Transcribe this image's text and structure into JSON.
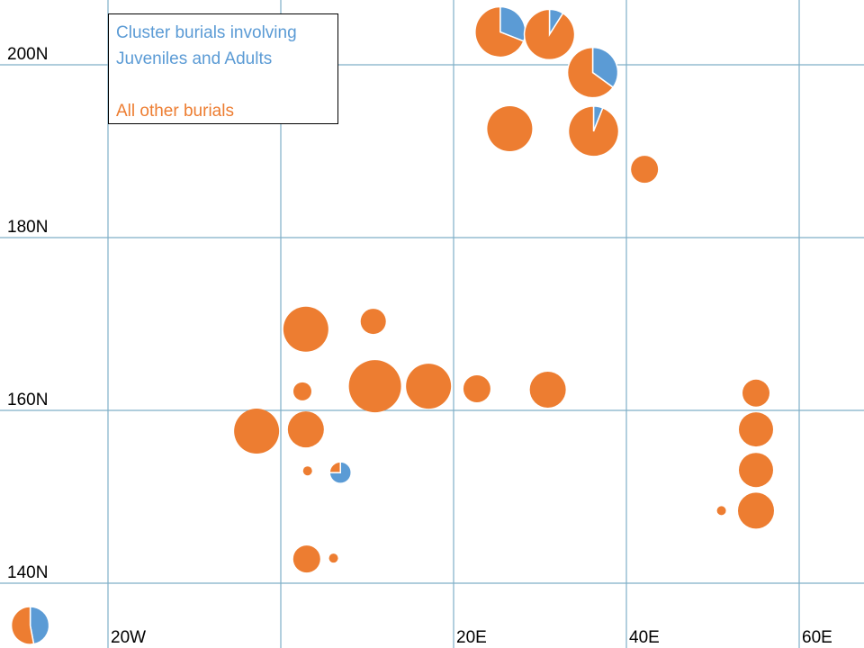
{
  "chart_data": {
    "type": "scatter",
    "subtype": "pie-bubble-map",
    "title": "",
    "xlabel": "",
    "ylabel": "",
    "x_ticks": [
      {
        "value": -20,
        "label": "20W"
      },
      {
        "value": 0,
        "label": ""
      },
      {
        "value": 20,
        "label": "20E"
      },
      {
        "value": 40,
        "label": "40E"
      },
      {
        "value": 60,
        "label": "60E"
      }
    ],
    "y_ticks": [
      {
        "value": 200,
        "label": "200N"
      },
      {
        "value": 180,
        "label": "180N"
      },
      {
        "value": 160,
        "label": "160N"
      },
      {
        "value": 140,
        "label": "140N"
      }
    ],
    "xlim": [
      -32.5,
      67.5
    ],
    "ylim": [
      132.5,
      207.5
    ],
    "grid": true,
    "legend": {
      "placement": "top-left",
      "entries": [
        {
          "label": "Cluster burials involving Juveniles and Adults",
          "line1": "Cluster burials involving",
          "line2": "Juveniles and Adults",
          "color": "#5B9BD5"
        },
        {
          "label": "All other burials",
          "color": "#ED7D31"
        }
      ]
    },
    "series_colors": {
      "cluster": "#5B9BD5",
      "other": "#ED7D31"
    },
    "points": [
      {
        "x": 25.4,
        "y": 203.8,
        "size": 2.8,
        "cluster_fraction": 0.31
      },
      {
        "x": 31.1,
        "y": 203.5,
        "size": 2.8,
        "cluster_fraction": 0.09
      },
      {
        "x": 36.1,
        "y": 199.1,
        "size": 2.8,
        "cluster_fraction": 0.35
      },
      {
        "x": 26.5,
        "y": 192.6,
        "size": 2.5,
        "cluster_fraction": 0
      },
      {
        "x": 36.2,
        "y": 192.3,
        "size": 2.8,
        "cluster_fraction": 0.06
      },
      {
        "x": 42.1,
        "y": 187.9,
        "size": 1.5,
        "cluster_fraction": 0
      },
      {
        "x": 2.9,
        "y": 169.4,
        "size": 2.5,
        "cluster_fraction": 0
      },
      {
        "x": 10.7,
        "y": 170.3,
        "size": 1.4,
        "cluster_fraction": 0
      },
      {
        "x": 2.5,
        "y": 162.2,
        "size": 1.0,
        "cluster_fraction": 0
      },
      {
        "x": 10.9,
        "y": 162.8,
        "size": 2.9,
        "cluster_fraction": 0
      },
      {
        "x": 17.1,
        "y": 162.8,
        "size": 2.5,
        "cluster_fraction": 0
      },
      {
        "x": 22.7,
        "y": 162.5,
        "size": 1.5,
        "cluster_fraction": 0
      },
      {
        "x": 30.9,
        "y": 162.4,
        "size": 2.0,
        "cluster_fraction": 0
      },
      {
        "x": 55.0,
        "y": 162.0,
        "size": 1.5,
        "cluster_fraction": 0
      },
      {
        "x": -2.8,
        "y": 157.6,
        "size": 2.5,
        "cluster_fraction": 0
      },
      {
        "x": 2.9,
        "y": 157.8,
        "size": 2.0,
        "cluster_fraction": 0
      },
      {
        "x": 55.0,
        "y": 157.8,
        "size": 1.9,
        "cluster_fraction": 0
      },
      {
        "x": 3.1,
        "y": 153.0,
        "size": 0.5,
        "cluster_fraction": 0
      },
      {
        "x": 6.9,
        "y": 152.8,
        "size": 1.2,
        "cluster_fraction": 0.75
      },
      {
        "x": 55.0,
        "y": 153.1,
        "size": 1.9,
        "cluster_fraction": 0
      },
      {
        "x": 51.0,
        "y": 148.4,
        "size": 0.5,
        "cluster_fraction": 0
      },
      {
        "x": 55.0,
        "y": 148.4,
        "size": 2.0,
        "cluster_fraction": 0
      },
      {
        "x": 3.0,
        "y": 142.8,
        "size": 1.5,
        "cluster_fraction": 0
      },
      {
        "x": 6.1,
        "y": 142.9,
        "size": 0.5,
        "cluster_fraction": 0
      },
      {
        "x": -29.0,
        "y": 135.1,
        "size": 2.1,
        "cluster_fraction": 0.47
      }
    ]
  }
}
